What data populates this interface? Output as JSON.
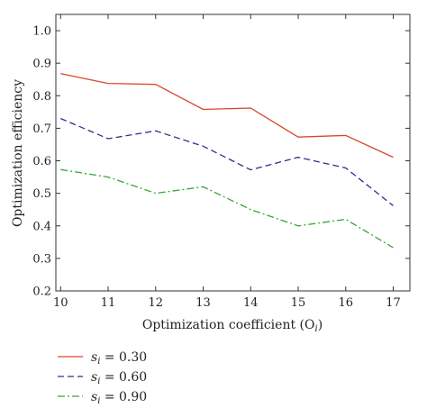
{
  "chart_data": {
    "type": "line",
    "x": [
      10,
      11,
      12,
      13,
      14,
      15,
      16,
      17
    ],
    "xlim": [
      9.9,
      17.35
    ],
    "ylim": [
      0.2,
      1.05
    ],
    "xticks": [
      10,
      11,
      12,
      13,
      14,
      15,
      16,
      17
    ],
    "yticks": [
      0.2,
      0.3,
      0.4,
      0.5,
      0.6,
      0.7,
      0.8,
      0.9,
      1.0
    ],
    "ytick_labels": [
      "0.2",
      "0.3",
      "0.4",
      "0.5",
      "0.6",
      "0.7",
      "0.8",
      "0.9",
      "1.0"
    ],
    "xlabel": "Optimization coefficient (O",
    "xlabel_sub": "i",
    "xlabel_end": ")",
    "ylabel": "Optimization efficiency",
    "grid": false,
    "legend_position": "below",
    "series": [
      {
        "name": "s",
        "name_sub": "i",
        "name_value": " = 0.30",
        "color": "#d9472b",
        "dash": "solid",
        "values": [
          0.868,
          0.838,
          0.835,
          0.758,
          0.762,
          0.673,
          0.678,
          0.611
        ]
      },
      {
        "name": "s",
        "name_sub": "i",
        "name_value": " = 0.60",
        "color": "#2b2f8f",
        "dash": "dashed",
        "values": [
          0.73,
          0.668,
          0.692,
          0.645,
          0.572,
          0.611,
          0.578,
          0.462
        ]
      },
      {
        "name": "s",
        "name_sub": "i",
        "name_value": " = 0.90",
        "color": "#3aa535",
        "dash": "dashdot",
        "values": [
          0.573,
          0.55,
          0.5,
          0.52,
          0.45,
          0.4,
          0.42,
          0.333
        ]
      }
    ]
  }
}
